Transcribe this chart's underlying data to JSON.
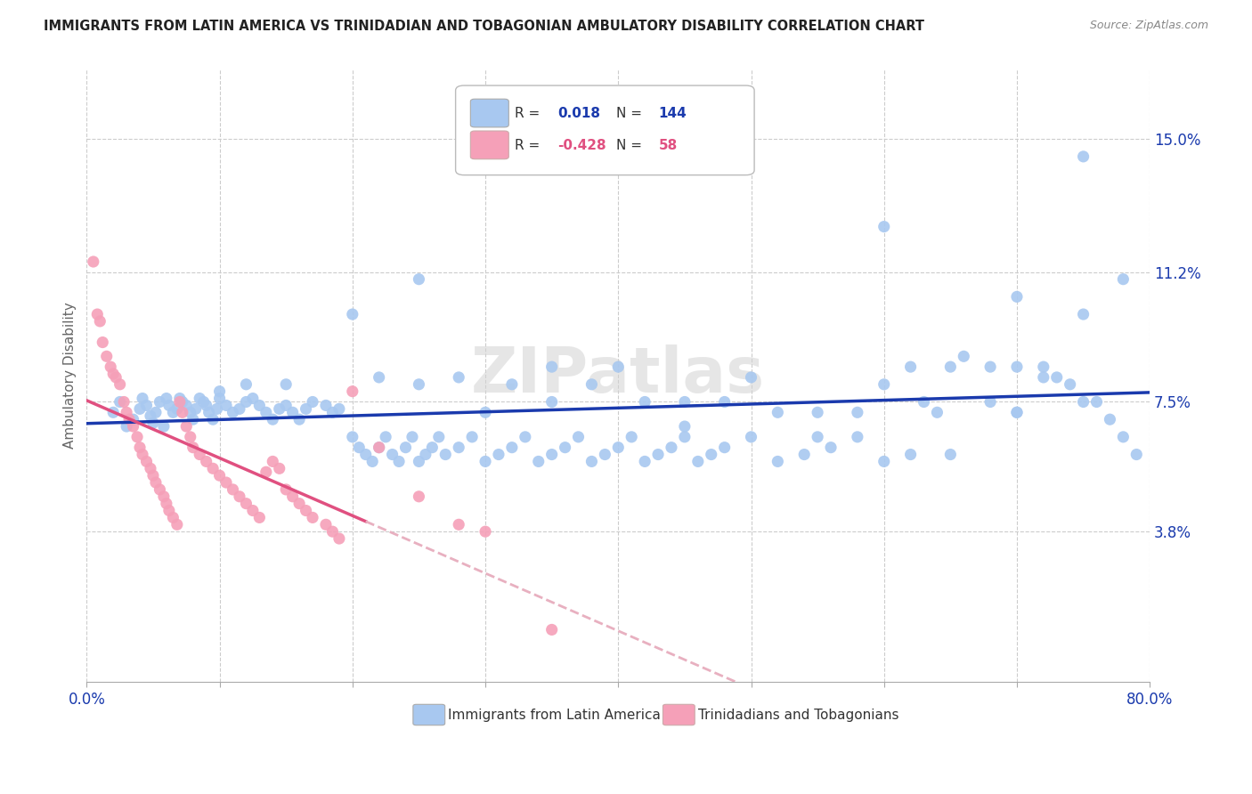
{
  "title": "IMMIGRANTS FROM LATIN AMERICA VS TRINIDADIAN AND TOBAGONIAN AMBULATORY DISABILITY CORRELATION CHART",
  "source": "Source: ZipAtlas.com",
  "ylabel": "Ambulatory Disability",
  "yticks": [
    0.038,
    0.075,
    0.112,
    0.15
  ],
  "ytick_labels": [
    "3.8%",
    "7.5%",
    "11.2%",
    "15.0%"
  ],
  "xlim": [
    0.0,
    0.8
  ],
  "ylim": [
    -0.005,
    0.17
  ],
  "blue_color": "#a8c8f0",
  "pink_color": "#f5a0b8",
  "blue_line_color": "#1a3aad",
  "pink_line_color": "#e05080",
  "pink_line_dashed_color": "#e8b0c0",
  "watermark": "ZIPatlas",
  "blue_r": "0.018",
  "blue_n": "144",
  "pink_r": "-0.428",
  "pink_n": "58",
  "blue_scatter_x": [
    0.02,
    0.025,
    0.03,
    0.035,
    0.04,
    0.042,
    0.045,
    0.048,
    0.05,
    0.052,
    0.055,
    0.058,
    0.06,
    0.062,
    0.065,
    0.068,
    0.07,
    0.072,
    0.075,
    0.078,
    0.08,
    0.082,
    0.085,
    0.088,
    0.09,
    0.092,
    0.095,
    0.098,
    0.1,
    0.105,
    0.11,
    0.115,
    0.12,
    0.125,
    0.13,
    0.135,
    0.14,
    0.145,
    0.15,
    0.155,
    0.16,
    0.165,
    0.17,
    0.18,
    0.185,
    0.19,
    0.2,
    0.205,
    0.21,
    0.215,
    0.22,
    0.225,
    0.23,
    0.235,
    0.24,
    0.245,
    0.25,
    0.255,
    0.26,
    0.265,
    0.27,
    0.28,
    0.29,
    0.3,
    0.31,
    0.32,
    0.33,
    0.34,
    0.35,
    0.36,
    0.37,
    0.38,
    0.39,
    0.4,
    0.41,
    0.42,
    0.43,
    0.44,
    0.45,
    0.46,
    0.47,
    0.48,
    0.5,
    0.52,
    0.54,
    0.56,
    0.58,
    0.6,
    0.62,
    0.63,
    0.64,
    0.65,
    0.66,
    0.68,
    0.7,
    0.72,
    0.73,
    0.74,
    0.75,
    0.76,
    0.77,
    0.78,
    0.79,
    0.3,
    0.4,
    0.5,
    0.6,
    0.7,
    0.35,
    0.45,
    0.55,
    0.65,
    0.75,
    0.25,
    0.35,
    0.45,
    0.55,
    0.7,
    0.28,
    0.38,
    0.48,
    0.58,
    0.68,
    0.22,
    0.32,
    0.42,
    0.52,
    0.62,
    0.72,
    0.15,
    0.2,
    0.25,
    0.6,
    0.7,
    0.75,
    0.78,
    0.1,
    0.12
  ],
  "blue_scatter_y": [
    0.072,
    0.075,
    0.068,
    0.07,
    0.073,
    0.076,
    0.074,
    0.071,
    0.069,
    0.072,
    0.075,
    0.068,
    0.076,
    0.074,
    0.072,
    0.073,
    0.076,
    0.075,
    0.074,
    0.072,
    0.07,
    0.073,
    0.076,
    0.075,
    0.074,
    0.072,
    0.07,
    0.073,
    0.076,
    0.074,
    0.072,
    0.073,
    0.075,
    0.076,
    0.074,
    0.072,
    0.07,
    0.073,
    0.074,
    0.072,
    0.07,
    0.073,
    0.075,
    0.074,
    0.072,
    0.073,
    0.065,
    0.062,
    0.06,
    0.058,
    0.062,
    0.065,
    0.06,
    0.058,
    0.062,
    0.065,
    0.058,
    0.06,
    0.062,
    0.065,
    0.06,
    0.062,
    0.065,
    0.058,
    0.06,
    0.062,
    0.065,
    0.058,
    0.06,
    0.062,
    0.065,
    0.058,
    0.06,
    0.062,
    0.065,
    0.058,
    0.06,
    0.062,
    0.065,
    0.058,
    0.06,
    0.062,
    0.065,
    0.058,
    0.06,
    0.062,
    0.065,
    0.058,
    0.06,
    0.075,
    0.072,
    0.085,
    0.088,
    0.075,
    0.072,
    0.085,
    0.082,
    0.08,
    0.145,
    0.075,
    0.07,
    0.065,
    0.06,
    0.072,
    0.085,
    0.082,
    0.08,
    0.072,
    0.075,
    0.068,
    0.065,
    0.06,
    0.075,
    0.08,
    0.085,
    0.075,
    0.072,
    0.085,
    0.082,
    0.08,
    0.075,
    0.072,
    0.085,
    0.082,
    0.08,
    0.075,
    0.072,
    0.085,
    0.082,
    0.08,
    0.1,
    0.11,
    0.125,
    0.105,
    0.1,
    0.11,
    0.078,
    0.08
  ],
  "pink_scatter_x": [
    0.005,
    0.008,
    0.01,
    0.012,
    0.015,
    0.018,
    0.02,
    0.022,
    0.025,
    0.028,
    0.03,
    0.032,
    0.035,
    0.038,
    0.04,
    0.042,
    0.045,
    0.048,
    0.05,
    0.052,
    0.055,
    0.058,
    0.06,
    0.062,
    0.065,
    0.068,
    0.07,
    0.072,
    0.075,
    0.078,
    0.08,
    0.085,
    0.09,
    0.095,
    0.1,
    0.105,
    0.11,
    0.115,
    0.12,
    0.125,
    0.13,
    0.135,
    0.14,
    0.145,
    0.15,
    0.155,
    0.16,
    0.165,
    0.17,
    0.18,
    0.185,
    0.19,
    0.2,
    0.22,
    0.25,
    0.28,
    0.3,
    0.35
  ],
  "pink_scatter_y": [
    0.115,
    0.1,
    0.098,
    0.092,
    0.088,
    0.085,
    0.083,
    0.082,
    0.08,
    0.075,
    0.072,
    0.07,
    0.068,
    0.065,
    0.062,
    0.06,
    0.058,
    0.056,
    0.054,
    0.052,
    0.05,
    0.048,
    0.046,
    0.044,
    0.042,
    0.04,
    0.075,
    0.072,
    0.068,
    0.065,
    0.062,
    0.06,
    0.058,
    0.056,
    0.054,
    0.052,
    0.05,
    0.048,
    0.046,
    0.044,
    0.042,
    0.055,
    0.058,
    0.056,
    0.05,
    0.048,
    0.046,
    0.044,
    0.042,
    0.04,
    0.038,
    0.036,
    0.078,
    0.062,
    0.048,
    0.04,
    0.038,
    0.01
  ]
}
